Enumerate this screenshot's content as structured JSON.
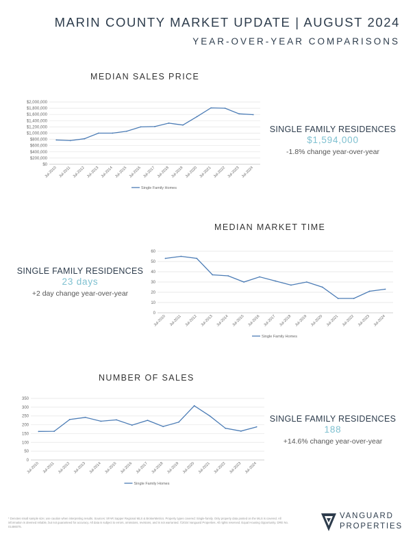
{
  "header": {
    "title": "MARIN COUNTY MARKET UPDATE | AUGUST 2024",
    "subtitle": "YEAR-OVER-YEAR COMPARISONS"
  },
  "sections": {
    "price": {
      "title": "MEDIAN SALES PRICE",
      "stat_label": "SINGLE FAMILY RESIDENCES",
      "stat_value": "$1,594,000",
      "stat_change": "-1.8% change year-over-year"
    },
    "market_time": {
      "title": "MEDIAN MARKET TIME",
      "stat_label": "SINGLE FAMILY RESIDENCES",
      "stat_value": "23 days",
      "stat_change": "+2 day change year-over-year"
    },
    "sales": {
      "title": "NUMBER OF SALES",
      "stat_label": "SINGLE FAMILY RESIDENCES",
      "stat_value": "188",
      "stat_change": "+14.6% change year-over-year"
    }
  },
  "chart_data": [
    {
      "id": "price",
      "type": "line",
      "x": [
        "Jul-2010",
        "Jul-2011",
        "Jul-2012",
        "Jul-2013",
        "Jul-2014",
        "Jul-2015",
        "Jul-2016",
        "Jul-2017",
        "Jul-2018",
        "Jul-2019",
        "Jul-2020",
        "Jul-2021",
        "Jul-2022",
        "Jul-2023",
        "Jul-2024"
      ],
      "series": [
        {
          "name": "Single Family Homes",
          "values": [
            780000,
            760000,
            820000,
            1000000,
            1000000,
            1060000,
            1200000,
            1210000,
            1320000,
            1260000,
            1530000,
            1810000,
            1800000,
            1620000,
            1594000
          ]
        }
      ],
      "ylim": [
        0,
        2000000
      ],
      "yticks": [
        0,
        200000,
        400000,
        600000,
        800000,
        1000000,
        1200000,
        1400000,
        1600000,
        1800000,
        2000000
      ],
      "ytick_labels": [
        "$0",
        "$200,000",
        "$400,000",
        "$600,000",
        "$800,000",
        "$1,000,000",
        "$1,200,000",
        "$1,400,000",
        "$1,600,000",
        "$1,800,000",
        "$2,000,000"
      ],
      "grid": true,
      "legend": "bottom",
      "color": "#4a7bb5"
    },
    {
      "id": "market_time",
      "type": "line",
      "x": [
        "Jul-2010",
        "Jul-2011",
        "Jul-2012",
        "Jul-2013",
        "Jul-2014",
        "Jul-2015",
        "Jul-2016",
        "Jul-2017",
        "Jul-2018",
        "Jul-2019",
        "Jul-2020",
        "Jul-2021",
        "Jul-2022",
        "Jul-2023",
        "Jul-2024"
      ],
      "series": [
        {
          "name": "Single Family Homes",
          "values": [
            53,
            55,
            53,
            37,
            36,
            30,
            35,
            31,
            27,
            30,
            25,
            14,
            14,
            21,
            23
          ]
        }
      ],
      "ylim": [
        0,
        60
      ],
      "yticks": [
        0,
        10,
        20,
        30,
        40,
        50,
        60
      ],
      "ytick_labels": [
        "0",
        "10",
        "20",
        "30",
        "40",
        "50",
        "60"
      ],
      "grid": true,
      "legend": "bottom",
      "color": "#4a7bb5"
    },
    {
      "id": "sales",
      "type": "line",
      "x": [
        "Jul-2010",
        "Jul-2011",
        "Jul-2012",
        "Jul-2013",
        "Jul-2014",
        "Jul-2015",
        "Jul-2016",
        "Jul-2017",
        "Jul-2018",
        "Jul-2019",
        "Jul-2020",
        "Jul-2021",
        "Jul-2022",
        "Jul-2023",
        "Jul-2024"
      ],
      "series": [
        {
          "name": "Single Family Homes",
          "values": [
            162,
            163,
            230,
            242,
            220,
            228,
            198,
            225,
            190,
            215,
            308,
            250,
            180,
            164,
            188
          ]
        }
      ],
      "ylim": [
        0,
        350
      ],
      "yticks": [
        0,
        50,
        100,
        150,
        200,
        250,
        300,
        350
      ],
      "ytick_labels": [
        "0",
        "50",
        "100",
        "150",
        "200",
        "250",
        "300",
        "350"
      ],
      "grid": true,
      "legend": "bottom",
      "color": "#4a7bb5"
    }
  ],
  "footer": {
    "disclaimer": "* Denotes small sample size; use caution when interpreting results. Sources: SFAR Sapper Regional MLS & BrokerMetrics. Property types covered: Single-family. Only property data posted on the MLS is covered. All information is deemed reliable, but not guaranteed for accuracy. All data is subject to errors, omissions, revisions, and is not warranted. ©2024 Vanguard Properties. All rights reserved. Equal Housing Opportunity. DRE No. 01486075.",
    "brand_line1": "VANGUARD",
    "brand_line2": "PROPERTIES",
    "logo_icon": "vanguard-logo-icon"
  }
}
